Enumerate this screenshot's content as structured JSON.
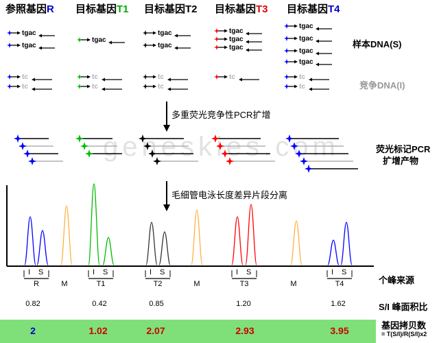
{
  "headers": [
    {
      "prefix": "参照基因",
      "suffix": "R",
      "suffix_color": "#0000cc"
    },
    {
      "prefix": "目标基因",
      "suffix": "T1",
      "suffix_color": "#00aa00"
    },
    {
      "prefix": "目标基因",
      "suffix": "T2",
      "suffix_color": "#000000"
    },
    {
      "prefix": "目标基因",
      "suffix": "T3",
      "suffix_color": "#dd0000"
    },
    {
      "prefix": "目标基因",
      "suffix": "T4",
      "suffix_color": "#0000cc"
    }
  ],
  "seq_sample": "tgac",
  "seq_competitor": "tc",
  "labels": {
    "sample_dna": "样本DNA(S)",
    "competitor_dna": "竞争DNA(I)",
    "step1": "多重荧光竞争性PCR扩增",
    "step2": "毛细管电泳长度差异片段分离",
    "products_line1": "荧光标记PCR",
    "products_line2": "扩增产物",
    "peak_source": "个峰来源",
    "ratio_label": "S/I 峰面积比",
    "copy_label": "基因拷贝数",
    "formula": "= T(S/I)/R(S/I)x2"
  },
  "watermark": "geneskies.com",
  "peak_groups": [
    {
      "name": "R",
      "i": "I",
      "s": "S"
    },
    {
      "name": "M"
    },
    {
      "name": "T1",
      "i": "I",
      "s": "S"
    },
    {
      "name": "T2",
      "i": "I",
      "s": "S"
    },
    {
      "name": "M"
    },
    {
      "name": "T3",
      "i": "I",
      "s": "S"
    },
    {
      "name": "M"
    },
    {
      "name": "T4",
      "i": "I",
      "s": "S"
    }
  ],
  "ratios": [
    "0.82",
    "0.42",
    "0.85",
    "1.20",
    "1.62"
  ],
  "copies": [
    {
      "value": "2",
      "color": "#0000cc"
    },
    {
      "value": "1.02",
      "color": "#cc0000"
    },
    {
      "value": "2.07",
      "color": "#cc0000"
    },
    {
      "value": "2.93",
      "color": "#cc0000"
    },
    {
      "value": "3.95",
      "color": "#cc0000"
    }
  ],
  "colors": {
    "blue": "#0000ff",
    "green": "#00bb00",
    "black": "#000000",
    "red": "#ff0000",
    "orange": "#ffb040",
    "grey": "#b0b0b0",
    "green_bar": "#7fe07a"
  }
}
